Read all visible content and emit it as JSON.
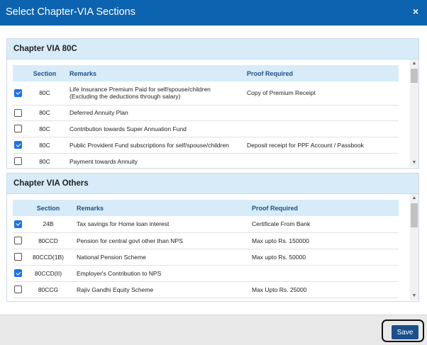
{
  "dialog": {
    "title": "Select Chapter-VIA Sections",
    "close_glyph": "×"
  },
  "icons": {
    "close": "close-icon",
    "scroll_up": "chevron-up-icon",
    "scroll_down": "chevron-down-icon",
    "checkbox": "checkbox-icon"
  },
  "colors": {
    "header": "#0c63b0",
    "panel_head": "#d7ecf8",
    "checked": "#1a73e8",
    "save": "#1a4f8b"
  },
  "sections": [
    {
      "title": "Chapter VIA 80C",
      "columns": {
        "section": "Section",
        "remarks": "Remarks",
        "proof": "Proof Required"
      },
      "rows": [
        {
          "checked": true,
          "section": "80C",
          "remarks": "Life Insurance Premium Paid for self/spouse/children",
          "remarks2": "(Excluding the deductions through salary)",
          "proof": "Copy of Premium Receipt"
        },
        {
          "checked": false,
          "section": "80C",
          "remarks": "Deferred Annuity Plan",
          "remarks2": "",
          "proof": ""
        },
        {
          "checked": false,
          "section": "80C",
          "remarks": "Contribution towards Super Annuation Fund",
          "remarks2": "",
          "proof": ""
        },
        {
          "checked": true,
          "section": "80C",
          "remarks": "Public Provident Fund subscriptions for self/spouse/children",
          "remarks2": "",
          "proof": "Deposit receipt for PPF Account / Passbook"
        },
        {
          "checked": false,
          "section": "80C",
          "remarks": "Payment towards Annuity",
          "remarks2": "",
          "proof": ""
        }
      ]
    },
    {
      "title": "Chapter VIA Others",
      "columns": {
        "section": "Section",
        "remarks": "Remarks",
        "proof": "Proof Required"
      },
      "rows": [
        {
          "checked": true,
          "section": "24B",
          "remarks": "Tax savings for Home loan interest",
          "proof": "Certificate From Bank"
        },
        {
          "checked": false,
          "section": "80CCD",
          "remarks": "Pension for central govt other than NPS",
          "proof": "Max upto Rs. 150000"
        },
        {
          "checked": false,
          "section": "80CCD(1B)",
          "remarks": "National Pension Scheme",
          "proof": "Max upto Rs. 50000"
        },
        {
          "checked": true,
          "section": "80CCD(II)",
          "remarks": "Employer's Contribution to NPS",
          "proof": ""
        },
        {
          "checked": false,
          "section": "80CCG",
          "remarks": "Rajiv Gandhi Equity Scheme",
          "proof": "Max Upto Rs. 25000"
        }
      ]
    }
  ],
  "footer": {
    "save_label": "Save"
  }
}
